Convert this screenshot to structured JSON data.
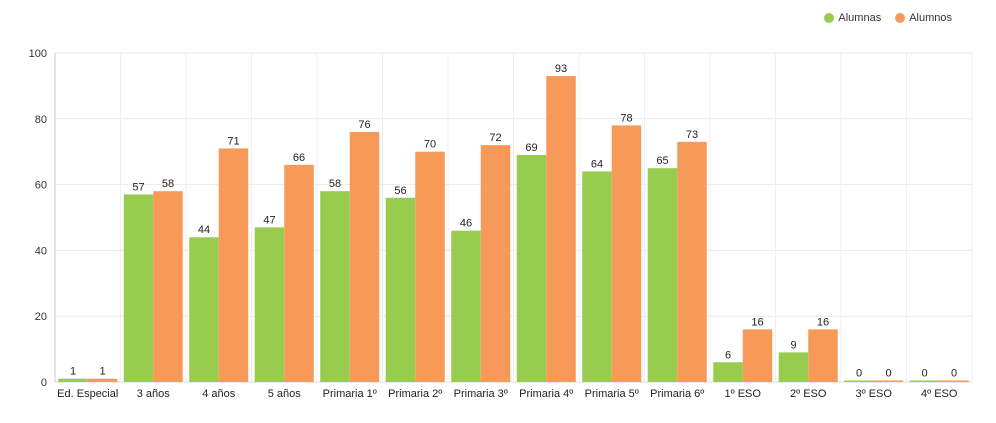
{
  "chart_data": {
    "type": "bar",
    "title": "",
    "xlabel": "",
    "ylabel": "",
    "ylim": [
      0,
      100
    ],
    "yticks": [
      0,
      20,
      40,
      60,
      80,
      100
    ],
    "grid": true,
    "legend_position": "top-right",
    "categories": [
      "Ed. Especial",
      "3 años",
      "4 años",
      "5 años",
      "Primaria 1º",
      "Primaria 2º",
      "Primaria 3º",
      "Primaria 4º",
      "Primaria 5º",
      "Primaria 6º",
      "1º ESO",
      "2º ESO",
      "3º ESO",
      "4º ESO"
    ],
    "series": [
      {
        "name": "Alumnas",
        "color": "#97CC4E",
        "values": [
          1,
          57,
          44,
          47,
          58,
          56,
          46,
          69,
          64,
          65,
          6,
          9,
          0,
          0
        ]
      },
      {
        "name": "Alumnos",
        "color": "#F79A59",
        "values": [
          1,
          58,
          71,
          66,
          76,
          70,
          72,
          93,
          78,
          73,
          16,
          16,
          0,
          0
        ]
      }
    ]
  }
}
